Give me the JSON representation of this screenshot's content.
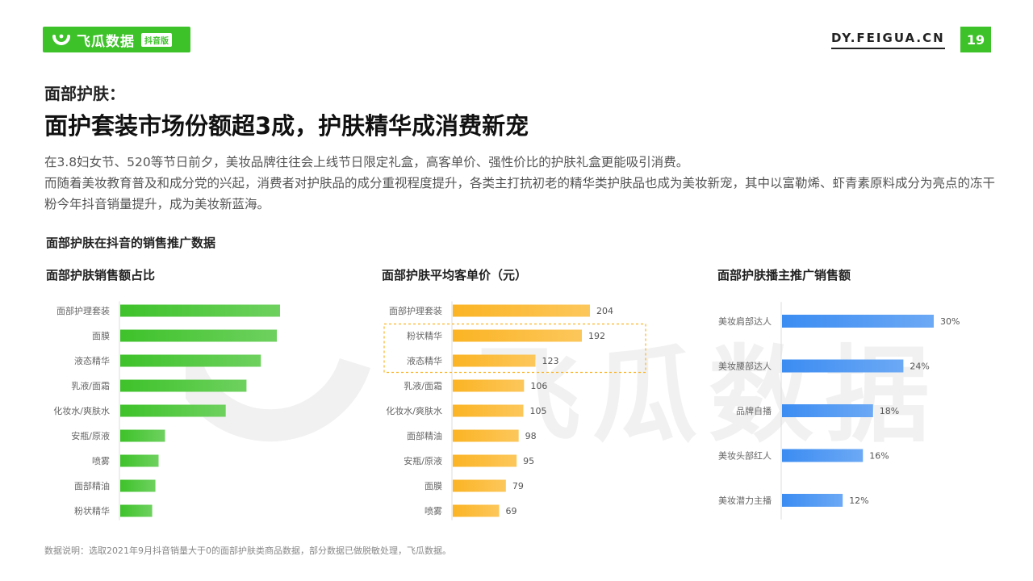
{
  "brand": {
    "name": "飞瓜数据",
    "tag": "抖音版"
  },
  "site": "DY.FEIGUA.CN",
  "page_number": "19",
  "subhead": "面部护肤：",
  "headline": "面护套装市场份额超3成，护肤精华成消费新宠",
  "description": [
    "在3.8妇女节、520等节日前夕，美妆品牌往往会上线节日限定礼盒，高客单价、强性价比的护肤礼盒更能吸引消费。",
    "而随着美妆教育普及和成分党的兴起，消费者对护肤品的成分重视程度提升，各类主打抗初老的精华类护肤品也成为美妆新宠，其中以富勒烯、虾青素原料成分为亮点的冻干粉今年抖音销量提升，成为美妆新蓝海。"
  ],
  "section_title": "面部护肤在抖音的销售推广数据",
  "footnote": "数据说明：选取2021年9月抖音销量大于0的面部护肤类商品数据，部分数据已做脱敏处理，飞瓜数据。",
  "watermark": "飞瓜数据",
  "colors": {
    "green": "#3ec22a",
    "orange": "#fbb424",
    "blue": "#3b8cf2"
  },
  "chart_data": [
    {
      "type": "bar",
      "orientation": "horizontal",
      "title": "面部护肤销售额占比",
      "categories": [
        "面部护理套装",
        "面膜",
        "液态精华",
        "乳液/面霜",
        "化妆水/爽肤水",
        "安瓶/原液",
        "喷雾",
        "面部精油",
        "粉状精华"
      ],
      "values": [
        100,
        98,
        88,
        79,
        66,
        28,
        24,
        22,
        20
      ],
      "value_unit": "relative share (no labels shown)",
      "show_labels": false,
      "color": "#3ec22a"
    },
    {
      "type": "bar",
      "orientation": "horizontal",
      "title": "面部护肤平均客单价（元）",
      "categories": [
        "面部护理套装",
        "粉状精华",
        "液态精华",
        "乳液/面霜",
        "化妆水/爽肤水",
        "面部精油",
        "安瓶/原液",
        "面膜",
        "喷雾"
      ],
      "values": [
        204,
        192,
        123,
        106,
        105,
        98,
        95,
        79,
        69
      ],
      "show_labels": true,
      "highlight": [
        "粉状精华",
        "液态精华"
      ],
      "color": "#fbb424"
    },
    {
      "type": "bar",
      "orientation": "horizontal",
      "title": "面部护肤播主推广销售额",
      "categories": [
        "美妆肩部达人",
        "美妆腰部达人",
        "品牌自播",
        "美妆头部红人",
        "美妆潜力主播"
      ],
      "values": [
        30,
        24,
        18,
        16,
        12
      ],
      "labels": [
        "30%",
        "24%",
        "18%",
        "16%",
        "12%"
      ],
      "show_labels": true,
      "color": "#3b8cf2"
    }
  ]
}
